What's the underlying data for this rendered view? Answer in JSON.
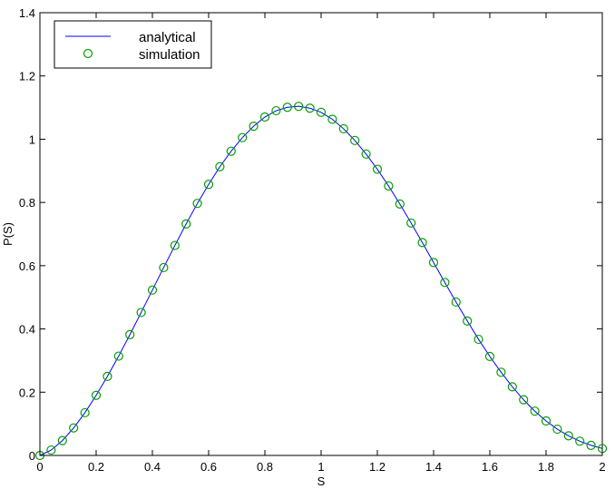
{
  "chart_data": {
    "type": "line",
    "title": "",
    "xlabel": "S",
    "ylabel": "P(S)",
    "xlim": [
      0,
      2
    ],
    "ylim": [
      0,
      1.4
    ],
    "xticks": [
      "0",
      "0.2",
      "0.4",
      "0.6",
      "0.8",
      "1",
      "1.2",
      "1.4",
      "1.6",
      "1.8",
      "2"
    ],
    "yticks": [
      "0",
      "0.2",
      "0.4",
      "0.6",
      "0.8",
      "1",
      "1.2",
      "1.4"
    ],
    "grid": false,
    "legend": {
      "position": "top-left",
      "entries": [
        "analytical",
        "simulation"
      ]
    },
    "colors": {
      "analytical": "#0000ff",
      "simulation": "#00a000"
    },
    "series": [
      {
        "name": "analytical",
        "style": "line",
        "x": [
          0,
          0.04,
          0.08,
          0.12,
          0.16,
          0.2,
          0.24,
          0.28,
          0.32,
          0.36,
          0.4,
          0.44,
          0.48,
          0.52,
          0.56,
          0.6,
          0.64,
          0.68,
          0.72,
          0.76,
          0.8,
          0.84,
          0.88,
          0.92,
          0.96,
          1.0,
          1.04,
          1.08,
          1.12,
          1.16,
          1.2,
          1.24,
          1.28,
          1.32,
          1.36,
          1.4,
          1.44,
          1.48,
          1.52,
          1.56,
          1.6,
          1.64,
          1.68,
          1.72,
          1.76,
          1.8,
          1.84,
          1.88,
          1.92,
          1.96,
          2.0
        ],
        "y": [
          0,
          0.017,
          0.047,
          0.087,
          0.135,
          0.19,
          0.25,
          0.314,
          0.382,
          0.452,
          0.523,
          0.594,
          0.664,
          0.732,
          0.797,
          0.857,
          0.913,
          0.962,
          1.005,
          1.041,
          1.07,
          1.09,
          1.101,
          1.104,
          1.098,
          1.085,
          1.063,
          1.033,
          0.996,
          0.953,
          0.905,
          0.852,
          0.795,
          0.735,
          0.673,
          0.61,
          0.547,
          0.485,
          0.425,
          0.367,
          0.313,
          0.263,
          0.217,
          0.176,
          0.14,
          0.109,
          0.083,
          0.062,
          0.045,
          0.032,
          0.022
        ]
      },
      {
        "name": "simulation",
        "style": "markers",
        "x": [
          0,
          0.04,
          0.08,
          0.12,
          0.16,
          0.2,
          0.24,
          0.28,
          0.32,
          0.36,
          0.4,
          0.44,
          0.48,
          0.52,
          0.56,
          0.6,
          0.64,
          0.68,
          0.72,
          0.76,
          0.8,
          0.84,
          0.88,
          0.92,
          0.96,
          1.0,
          1.04,
          1.08,
          1.12,
          1.16,
          1.2,
          1.24,
          1.28,
          1.32,
          1.36,
          1.4,
          1.44,
          1.48,
          1.52,
          1.56,
          1.6,
          1.64,
          1.68,
          1.72,
          1.76,
          1.8,
          1.84,
          1.88,
          1.92,
          1.96,
          2.0
        ],
        "y": [
          0,
          0.017,
          0.047,
          0.087,
          0.135,
          0.19,
          0.25,
          0.314,
          0.382,
          0.452,
          0.523,
          0.594,
          0.664,
          0.732,
          0.797,
          0.857,
          0.913,
          0.962,
          1.005,
          1.041,
          1.07,
          1.09,
          1.101,
          1.104,
          1.098,
          1.085,
          1.063,
          1.033,
          0.996,
          0.953,
          0.905,
          0.852,
          0.795,
          0.735,
          0.673,
          0.61,
          0.547,
          0.485,
          0.425,
          0.367,
          0.313,
          0.263,
          0.217,
          0.176,
          0.14,
          0.109,
          0.083,
          0.062,
          0.045,
          0.032,
          0.022
        ]
      }
    ]
  }
}
